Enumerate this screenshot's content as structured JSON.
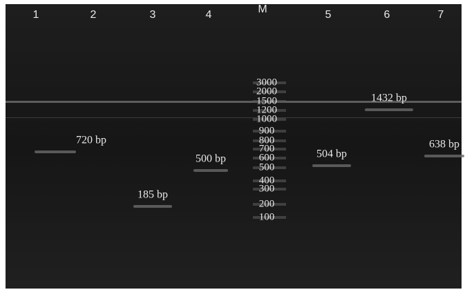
{
  "lanes": [
    "1",
    "2",
    "3",
    "4",
    "M",
    "5",
    "6",
    "7"
  ],
  "marker": [
    "3000",
    "2000",
    "1500",
    "1200",
    "1000",
    "900",
    "800",
    "700",
    "600",
    "500",
    "400",
    "300",
    "200",
    "100"
  ],
  "bands": [
    "720 bp",
    "185 bp",
    "500 bp",
    "504 bp",
    "1432 bp",
    "638 bp"
  ]
}
